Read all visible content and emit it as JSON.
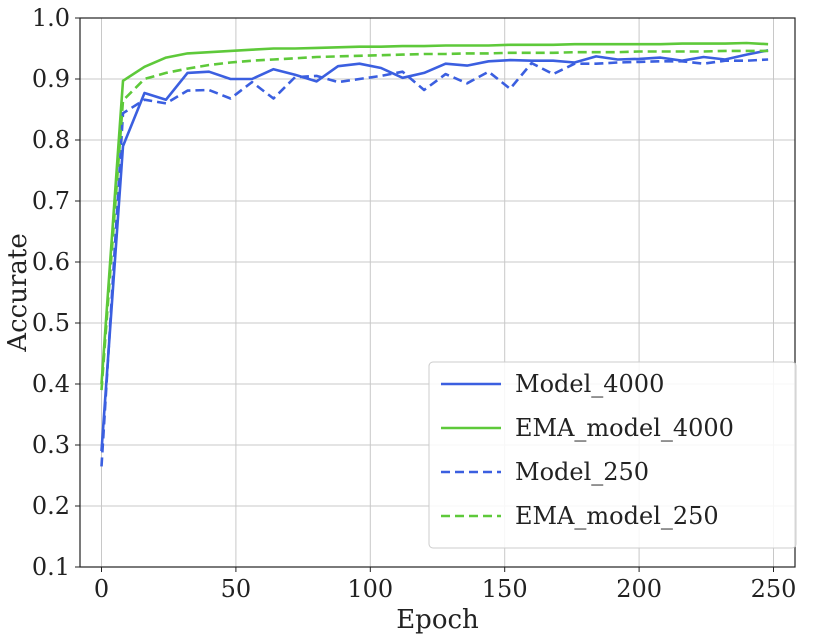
{
  "chart_data": {
    "type": "line",
    "xlabel": "Epoch",
    "ylabel": "Accurate",
    "xlim": [
      -8,
      258
    ],
    "ylim": [
      0.1,
      1.0
    ],
    "xticks": [
      0,
      50,
      100,
      150,
      200,
      250
    ],
    "yticks": [
      0.1,
      0.2,
      0.3,
      0.4,
      0.5,
      0.6,
      0.7,
      0.8,
      0.9,
      1.0
    ],
    "grid": true,
    "legend_position": "lower-right",
    "series": [
      {
        "name": "Model_4000",
        "color": "#3b5fe0",
        "dash": "solid",
        "x": [
          0,
          8,
          16,
          24,
          32,
          40,
          48,
          56,
          64,
          72,
          80,
          88,
          96,
          104,
          112,
          120,
          128,
          136,
          144,
          152,
          160,
          168,
          176,
          184,
          192,
          200,
          208,
          216,
          224,
          232,
          240,
          248
        ],
        "y": [
          0.29,
          0.79,
          0.877,
          0.866,
          0.91,
          0.912,
          0.9,
          0.9,
          0.916,
          0.907,
          0.896,
          0.921,
          0.925,
          0.918,
          0.902,
          0.91,
          0.925,
          0.922,
          0.929,
          0.931,
          0.93,
          0.93,
          0.927,
          0.937,
          0.932,
          0.933,
          0.935,
          0.93,
          0.936,
          0.932,
          0.94,
          0.947
        ]
      },
      {
        "name": "EMA_model_4000",
        "color": "#5ec93a",
        "dash": "solid",
        "x": [
          0,
          8,
          16,
          24,
          32,
          40,
          48,
          56,
          64,
          72,
          80,
          88,
          96,
          104,
          112,
          120,
          128,
          136,
          144,
          152,
          160,
          168,
          176,
          184,
          192,
          200,
          208,
          216,
          224,
          232,
          240,
          248
        ],
        "y": [
          0.4,
          0.897,
          0.92,
          0.935,
          0.942,
          0.944,
          0.946,
          0.948,
          0.95,
          0.95,
          0.951,
          0.952,
          0.953,
          0.953,
          0.954,
          0.954,
          0.955,
          0.955,
          0.955,
          0.956,
          0.956,
          0.956,
          0.957,
          0.957,
          0.957,
          0.957,
          0.957,
          0.958,
          0.958,
          0.958,
          0.959,
          0.957
        ]
      },
      {
        "name": "Model_250",
        "color": "#3b5fe0",
        "dash": "dashed",
        "x": [
          0,
          8,
          16,
          24,
          32,
          40,
          48,
          56,
          64,
          72,
          80,
          88,
          96,
          104,
          112,
          120,
          128,
          136,
          144,
          152,
          160,
          168,
          176,
          184,
          192,
          200,
          208,
          216,
          224,
          232,
          240,
          248
        ],
        "y": [
          0.265,
          0.844,
          0.866,
          0.86,
          0.881,
          0.882,
          0.868,
          0.895,
          0.868,
          0.903,
          0.905,
          0.895,
          0.9,
          0.905,
          0.912,
          0.882,
          0.908,
          0.893,
          0.912,
          0.884,
          0.926,
          0.908,
          0.925,
          0.925,
          0.927,
          0.928,
          0.929,
          0.929,
          0.925,
          0.93,
          0.93,
          0.932
        ]
      },
      {
        "name": "EMA_model_250",
        "color": "#5ec93a",
        "dash": "dashed",
        "x": [
          0,
          8,
          16,
          24,
          32,
          40,
          48,
          56,
          64,
          72,
          80,
          88,
          96,
          104,
          112,
          120,
          128,
          136,
          144,
          152,
          160,
          168,
          176,
          184,
          192,
          200,
          208,
          216,
          224,
          232,
          240,
          248
        ],
        "y": [
          0.39,
          0.865,
          0.9,
          0.91,
          0.917,
          0.923,
          0.927,
          0.93,
          0.932,
          0.934,
          0.936,
          0.937,
          0.938,
          0.939,
          0.94,
          0.941,
          0.941,
          0.942,
          0.942,
          0.943,
          0.943,
          0.943,
          0.944,
          0.944,
          0.944,
          0.945,
          0.945,
          0.945,
          0.945,
          0.946,
          0.946,
          0.946
        ]
      }
    ]
  }
}
